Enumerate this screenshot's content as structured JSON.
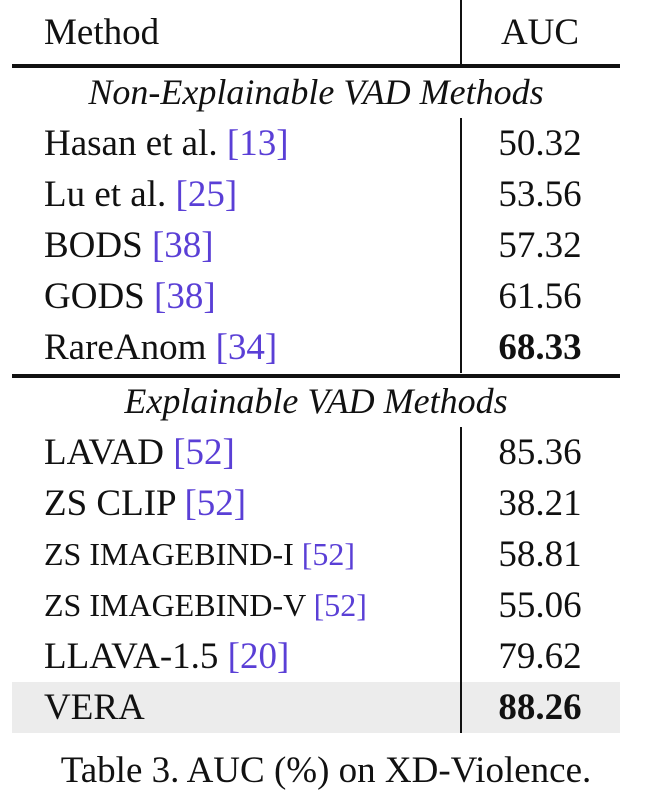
{
  "table": {
    "header": {
      "method": "Method",
      "auc": "AUC"
    },
    "sections": [
      {
        "title": "Non-Explainable VAD Methods",
        "rows": [
          {
            "method": "Hasan et al.",
            "cite": "[13]",
            "auc": "50.32",
            "bold": false,
            "highlight": false
          },
          {
            "method": "Lu et al.",
            "cite": "[25]",
            "auc": "53.56",
            "bold": false,
            "highlight": false
          },
          {
            "method": "BODS",
            "cite": "[38]",
            "auc": "57.32",
            "bold": false,
            "highlight": false
          },
          {
            "method": "GODS",
            "cite": "[38]",
            "auc": "61.56",
            "bold": false,
            "highlight": false
          },
          {
            "method": "RareAnom",
            "cite": "[34]",
            "auc": "68.33",
            "bold": true,
            "highlight": false
          }
        ]
      },
      {
        "title": "Explainable VAD Methods",
        "rows": [
          {
            "method": "LAVAD",
            "cite": "[52]",
            "auc": "85.36",
            "bold": false,
            "highlight": false
          },
          {
            "method": "ZS CLIP",
            "cite": "[52]",
            "auc": "38.21",
            "bold": false,
            "highlight": false
          },
          {
            "method": "ZS IMAGEBIND-I",
            "cite": "[52]",
            "auc": "58.81",
            "bold": false,
            "highlight": false,
            "smaller": true
          },
          {
            "method": "ZS IMAGEBIND-V",
            "cite": "[52]",
            "auc": "55.06",
            "bold": false,
            "highlight": false,
            "smaller": true
          },
          {
            "method": "LLAVA-1.5",
            "cite": "[20]",
            "auc": "79.62",
            "bold": false,
            "highlight": false
          },
          {
            "method": "VERA",
            "cite": "",
            "auc": "88.26",
            "bold": true,
            "highlight": true
          }
        ]
      }
    ]
  },
  "caption": "Table 3. AUC (%) on XD-Violence.",
  "colors": {
    "citation": "#5a3fd6",
    "highlight_row": "#ececec",
    "text": "#111111"
  }
}
